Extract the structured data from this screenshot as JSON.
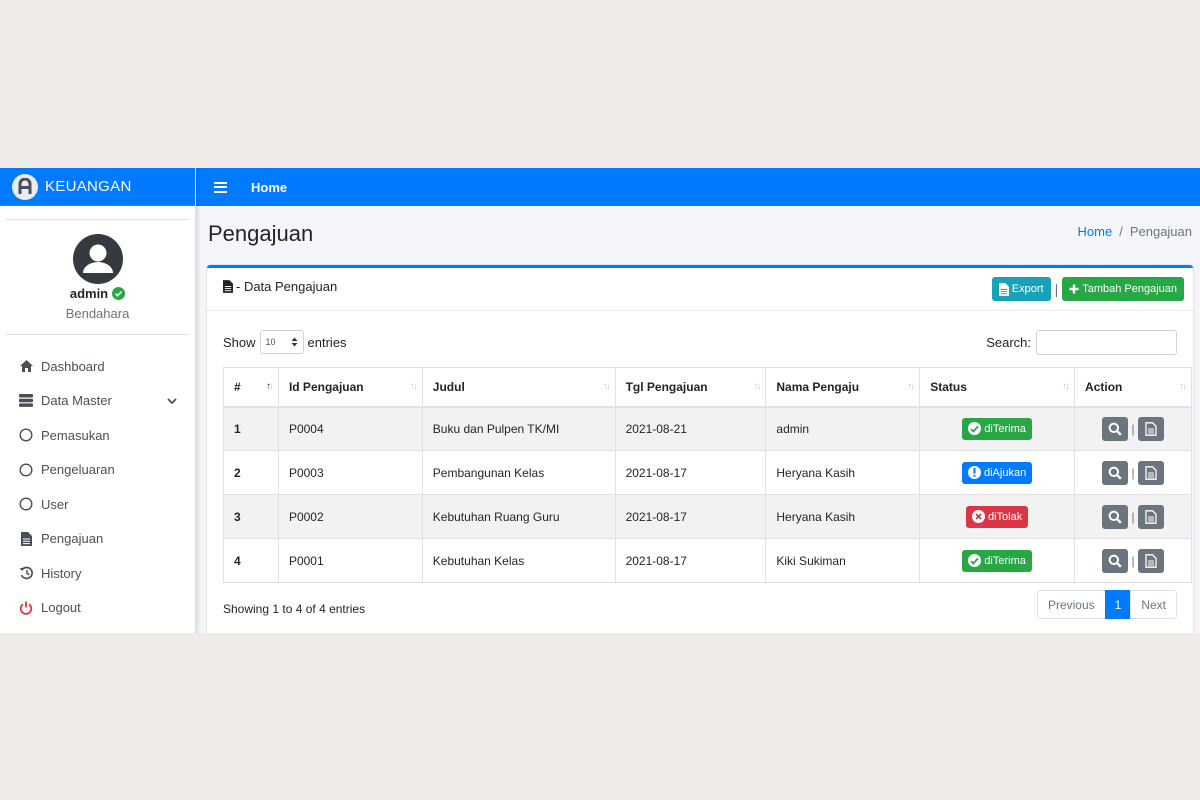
{
  "brand": {
    "name": "KEUANGAN"
  },
  "user": {
    "name": "admin",
    "role": "Bendahara"
  },
  "sidebar": {
    "items": [
      {
        "label": "Dashboard",
        "icon": "home-icon"
      },
      {
        "label": "Data Master",
        "icon": "database-icon",
        "expandable": true
      },
      {
        "label": "Pemasukan",
        "icon": "circle-icon"
      },
      {
        "label": "Pengeluaran",
        "icon": "circle-icon"
      },
      {
        "label": "User",
        "icon": "circle-icon"
      },
      {
        "label": "Pengajuan",
        "icon": "file-icon"
      },
      {
        "label": "History",
        "icon": "history-icon"
      },
      {
        "label": "Logout",
        "icon": "power-icon"
      }
    ]
  },
  "topbar": {
    "home": "Home"
  },
  "page": {
    "title": "Pengajuan"
  },
  "breadcrumb": {
    "home": "Home",
    "separator": "/",
    "current": "Pengajuan"
  },
  "card": {
    "title": "- Data Pengajuan",
    "export_label": "Export",
    "add_label": "Tambah Pengajuan",
    "tools_separator": "|"
  },
  "table_controls": {
    "show_label": "Show",
    "entries_label": "entries",
    "page_size": "10",
    "search_label": "Search:",
    "search_value": ""
  },
  "table": {
    "columns": [
      "#",
      "Id Pengajuan",
      "Judul",
      "Tgl Pengajuan",
      "Nama Pengaju",
      "Status",
      "Action"
    ],
    "rows": [
      {
        "no": "1",
        "id": "P0004",
        "judul": "Buku dan Pulpen TK/MI",
        "tgl": "2021-08-21",
        "nama": "admin",
        "status": "diTerima",
        "status_type": "success"
      },
      {
        "no": "2",
        "id": "P0003",
        "judul": "Pembangunan Kelas",
        "tgl": "2021-08-17",
        "nama": "Heryana Kasih",
        "status": "diAjukan",
        "status_type": "primary"
      },
      {
        "no": "3",
        "id": "P0002",
        "judul": "Kebutuhan Ruang Guru",
        "tgl": "2021-08-17",
        "nama": "Heryana Kasih",
        "status": "diTolak",
        "status_type": "danger"
      },
      {
        "no": "4",
        "id": "P0001",
        "judul": "Kebutuhan Kelas",
        "tgl": "2021-08-17",
        "nama": "Kiki Sukiman",
        "status": "diTerima",
        "status_type": "success"
      }
    ],
    "action_separator": "|"
  },
  "footer": {
    "info": "Showing 1 to 4 of 4 entries",
    "previous": "Previous",
    "current_page": "1",
    "next": "Next"
  },
  "colors": {
    "primary": "#007bff",
    "success": "#28a745",
    "danger": "#dc3545",
    "info": "#17a2b8",
    "secondary": "#6c757d"
  }
}
